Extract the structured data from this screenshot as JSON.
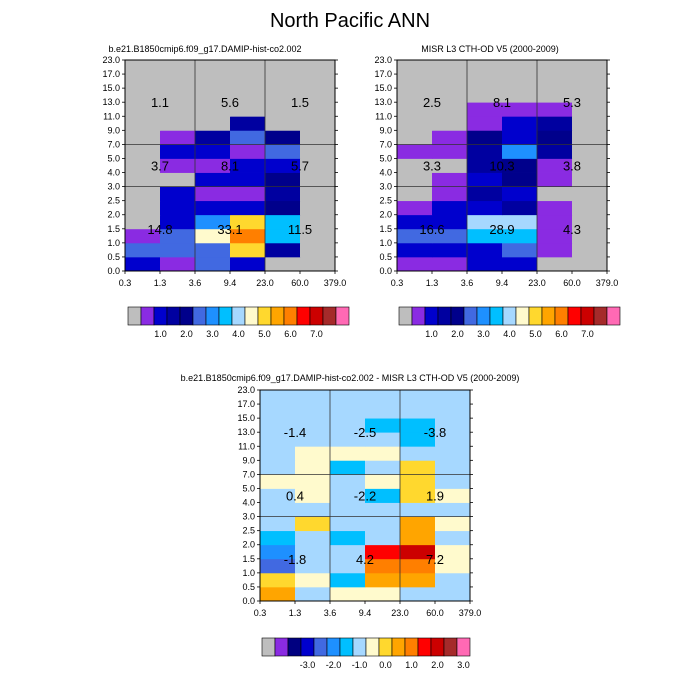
{
  "figure_title": "North Pacific ANN",
  "x_tick_labels": [
    "0.3",
    "1.3",
    "3.6",
    "9.4",
    "23.0",
    "60.0",
    "379.0"
  ],
  "y_tick_labels": [
    "0.0",
    "0.5",
    "1.0",
    "1.5",
    "2.0",
    "2.5",
    "3.0",
    "4.0",
    "5.0",
    "7.0",
    "9.0",
    "11.0",
    "13.0",
    "15.0",
    "17.0",
    "23.0"
  ],
  "colors": {
    "missing": "#bebebe",
    "main_scale": [
      "#8a2be2",
      "#0000cd",
      "#0000a0",
      "#00008b",
      "#4169e1",
      "#1e90ff",
      "#00bfff",
      "#a6d8ff",
      "#fffacd",
      "#ffd82e",
      "#ffa500",
      "#ff7f00",
      "#ff0000",
      "#cc0000",
      "#a52a2a",
      "#ff69b4"
    ],
    "diff_scale": [
      "#8a2be2",
      "#000080",
      "#0000cd",
      "#4169e1",
      "#1e90ff",
      "#00bfff",
      "#a6d8ff",
      "#fffacd",
      "#ffd82e",
      "#ffa500",
      "#ff7f00",
      "#ff0000",
      "#cc0000",
      "#a52a2a",
      "#ff69b4"
    ]
  },
  "chart_data": [
    {
      "type": "heatmap",
      "title": "b.e21.B1850cmip6.f09_g17.DAMIP-hist-co2.002",
      "x_edges": [
        0.3,
        1.3,
        3.6,
        9.4,
        23.0,
        60.0,
        379.0
      ],
      "y_edges": [
        0.0,
        0.5,
        1.0,
        1.5,
        2.0,
        2.5,
        3.0,
        4.0,
        5.0,
        7.0,
        9.0,
        11.0,
        13.0,
        15.0,
        17.0,
        23.0
      ],
      "levels": [
        1.0,
        2.0,
        3.0,
        4.0,
        5.0,
        6.0,
        7.0
      ],
      "colorbar_labels": [
        "1.0",
        "2.0",
        "3.0",
        "4.0",
        "5.0",
        "6.0",
        "7.0"
      ],
      "cell_colors": [
        [
          "#0000cd",
          "#8a2be2",
          "#4169e1",
          "#0000cd",
          "#bebebe",
          "#bebebe"
        ],
        [
          "#4169e1",
          "#4169e1",
          "#4169e1",
          "#ffd82e",
          "#0000a0",
          "#bebebe"
        ],
        [
          "#8a2be2",
          "#4169e1",
          "#fffacd",
          "#ff7f00",
          "#00bfff",
          "#bebebe"
        ],
        [
          "#bebebe",
          "#0000cd",
          "#1e90ff",
          "#ffd82e",
          "#00bfff",
          "#bebebe"
        ],
        [
          "#bebebe",
          "#0000cd",
          "#0000cd",
          "#0000cd",
          "#00008b",
          "#bebebe"
        ],
        [
          "#bebebe",
          "#0000cd",
          "#8a2be2",
          "#8a2be2",
          "#0000a0",
          "#bebebe"
        ],
        [
          "#bebebe",
          "#bebebe",
          "#0000cd",
          "#0000cd",
          "#00008b",
          "#bebebe"
        ],
        [
          "#bebebe",
          "#8a2be2",
          "#8a2be2",
          "#0000cd",
          "#0000cd",
          "#bebebe"
        ],
        [
          "#bebebe",
          "#0000cd",
          "#0000cd",
          "#8a2be2",
          "#4169e1",
          "#bebebe"
        ],
        [
          "#bebebe",
          "#8a2be2",
          "#0000a0",
          "#4169e1",
          "#00008b",
          "#bebebe"
        ],
        [
          "#bebebe",
          "#bebebe",
          "#bebebe",
          "#0000a0",
          "#bebebe",
          "#bebebe"
        ],
        [
          "#bebebe",
          "#bebebe",
          "#bebebe",
          "#bebebe",
          "#bebebe",
          "#bebebe"
        ],
        [
          "#bebebe",
          "#bebebe",
          "#bebebe",
          "#bebebe",
          "#bebebe",
          "#bebebe"
        ],
        [
          "#bebebe",
          "#bebebe",
          "#bebebe",
          "#bebebe",
          "#bebebe",
          "#bebebe"
        ],
        [
          "#bebebe",
          "#bebebe",
          "#bebebe",
          "#bebebe",
          "#bebebe",
          "#bebebe"
        ]
      ],
      "region_labels": [
        {
          "text": "1.1",
          "x": 0.8,
          "y": 13.6
        },
        {
          "text": "5.6",
          "x": 6.1,
          "y": 13.6
        },
        {
          "text": "1.5",
          "x": 41.0,
          "y": 13.6
        },
        {
          "text": "3.7",
          "x": 0.8,
          "y": 5.5
        },
        {
          "text": "8.1",
          "x": 6.1,
          "y": 5.5
        },
        {
          "text": "5.7",
          "x": 41.0,
          "y": 5.5
        },
        {
          "text": "14.8",
          "x": 0.8,
          "y": 1.5
        },
        {
          "text": "33.1",
          "x": 6.1,
          "y": 1.5
        },
        {
          "text": "11.5",
          "x": 41.0,
          "y": 1.5
        }
      ]
    },
    {
      "type": "heatmap",
      "title": "MISR L3 CTH-OD V5 (2000-2009)",
      "x_edges": [
        0.3,
        1.3,
        3.6,
        9.4,
        23.0,
        60.0,
        379.0
      ],
      "y_edges": [
        0.0,
        0.5,
        1.0,
        1.5,
        2.0,
        2.5,
        3.0,
        4.0,
        5.0,
        7.0,
        9.0,
        11.0,
        13.0,
        15.0,
        17.0,
        23.0
      ],
      "levels": [
        1.0,
        2.0,
        3.0,
        4.0,
        5.0,
        6.0,
        7.0
      ],
      "colorbar_labels": [
        "1.0",
        "2.0",
        "3.0",
        "4.0",
        "5.0",
        "6.0",
        "7.0"
      ],
      "cell_colors": [
        [
          "#8a2be2",
          "#8a2be2",
          "#0000cd",
          "#0000cd",
          "#bebebe",
          "#bebebe"
        ],
        [
          "#0000cd",
          "#0000cd",
          "#0000cd",
          "#4169e1",
          "#8a2be2",
          "#bebebe"
        ],
        [
          "#4169e1",
          "#4169e1",
          "#00bfff",
          "#00bfff",
          "#8a2be2",
          "#bebebe"
        ],
        [
          "#0000cd",
          "#0000cd",
          "#a6d8ff",
          "#a6d8ff",
          "#8a2be2",
          "#bebebe"
        ],
        [
          "#8a2be2",
          "#0000cd",
          "#0000cd",
          "#0000a0",
          "#8a2be2",
          "#bebebe"
        ],
        [
          "#bebebe",
          "#8a2be2",
          "#0000a0",
          "#0000cd",
          "#bebebe",
          "#bebebe"
        ],
        [
          "#bebebe",
          "#8a2be2",
          "#0000cd",
          "#00008b",
          "#8a2be2",
          "#bebebe"
        ],
        [
          "#bebebe",
          "#bebebe",
          "#0000a0",
          "#00008b",
          "#8a2be2",
          "#bebebe"
        ],
        [
          "#8a2be2",
          "#8a2be2",
          "#0000a0",
          "#1e90ff",
          "#0000a0",
          "#bebebe"
        ],
        [
          "#bebebe",
          "#8a2be2",
          "#00008b",
          "#0000cd",
          "#00008b",
          "#bebebe"
        ],
        [
          "#bebebe",
          "#bebebe",
          "#8a2be2",
          "#0000cd",
          "#0000a0",
          "#bebebe"
        ],
        [
          "#bebebe",
          "#bebebe",
          "#8a2be2",
          "#8a2be2",
          "#8a2be2",
          "#bebebe"
        ],
        [
          "#bebebe",
          "#bebebe",
          "#bebebe",
          "#bebebe",
          "#bebebe",
          "#bebebe"
        ],
        [
          "#bebebe",
          "#bebebe",
          "#bebebe",
          "#bebebe",
          "#bebebe",
          "#bebebe"
        ],
        [
          "#bebebe",
          "#bebebe",
          "#bebebe",
          "#bebebe",
          "#bebebe",
          "#bebebe"
        ]
      ],
      "region_labels": [
        {
          "text": "2.5",
          "x": 0.8,
          "y": 13.6
        },
        {
          "text": "8.1",
          "x": 6.1,
          "y": 13.6
        },
        {
          "text": "5.3",
          "x": 41.0,
          "y": 13.6
        },
        {
          "text": "3.3",
          "x": 0.8,
          "y": 5.5
        },
        {
          "text": "10.3",
          "x": 6.1,
          "y": 5.5
        },
        {
          "text": "3.8",
          "x": 41.0,
          "y": 5.5
        },
        {
          "text": "16.6",
          "x": 0.8,
          "y": 1.5
        },
        {
          "text": "28.9",
          "x": 6.1,
          "y": 1.5
        },
        {
          "text": "4.3",
          "x": 41.0,
          "y": 1.5
        }
      ]
    },
    {
      "type": "heatmap",
      "title": "b.e21.B1850cmip6.f09_g17.DAMIP-hist-co2.002 - MISR L3 CTH-OD V5 (2000-2009)",
      "x_edges": [
        0.3,
        1.3,
        3.6,
        9.4,
        23.0,
        60.0,
        379.0
      ],
      "y_edges": [
        0.0,
        0.5,
        1.0,
        1.5,
        2.0,
        2.5,
        3.0,
        4.0,
        5.0,
        7.0,
        9.0,
        11.0,
        13.0,
        15.0,
        17.0,
        23.0
      ],
      "levels": [
        -3.0,
        -2.0,
        -1.0,
        0.0,
        1.0,
        2.0,
        3.0
      ],
      "colorbar_labels": [
        "-3.0",
        "-2.0",
        "-1.0",
        "0.0",
        "1.0",
        "2.0",
        "3.0"
      ],
      "cell_colors": [
        [
          "#ffa500",
          "#a6d8ff",
          "#fffacd",
          "#fffacd",
          "#a6d8ff",
          "#a6d8ff"
        ],
        [
          "#ffd82e",
          "#fffacd",
          "#00bfff",
          "#ffa500",
          "#ffa500",
          "#a6d8ff"
        ],
        [
          "#4169e1",
          "#a6d8ff",
          "#a6d8ff",
          "#ff7f00",
          "#ff7f00",
          "#fffacd"
        ],
        [
          "#1e90ff",
          "#a6d8ff",
          "#a6d8ff",
          "#ff0000",
          "#cc0000",
          "#fffacd"
        ],
        [
          "#00bfff",
          "#a6d8ff",
          "#00bfff",
          "#a6d8ff",
          "#ffa500",
          "#a6d8ff"
        ],
        [
          "#a6d8ff",
          "#ffd82e",
          "#a6d8ff",
          "#a6d8ff",
          "#ffa500",
          "#fffacd"
        ],
        [
          "#a6d8ff",
          "#a6d8ff",
          "#a6d8ff",
          "#a6d8ff",
          "#a6d8ff",
          "#a6d8ff"
        ],
        [
          "#a6d8ff",
          "#fffacd",
          "#a6d8ff",
          "#00bfff",
          "#ffd82e",
          "#fffacd"
        ],
        [
          "#fffacd",
          "#fffacd",
          "#a6d8ff",
          "#fffacd",
          "#ffd82e",
          "#a6d8ff"
        ],
        [
          "#a6d8ff",
          "#fffacd",
          "#00bfff",
          "#a6d8ff",
          "#ffd82e",
          "#a6d8ff"
        ],
        [
          "#a6d8ff",
          "#fffacd",
          "#fffacd",
          "#fffacd",
          "#a6d8ff",
          "#a6d8ff"
        ],
        [
          "#a6d8ff",
          "#a6d8ff",
          "#a6d8ff",
          "#a6d8ff",
          "#00bfff",
          "#a6d8ff"
        ],
        [
          "#a6d8ff",
          "#a6d8ff",
          "#a6d8ff",
          "#00bfff",
          "#00bfff",
          "#a6d8ff"
        ],
        [
          "#a6d8ff",
          "#a6d8ff",
          "#a6d8ff",
          "#a6d8ff",
          "#a6d8ff",
          "#a6d8ff"
        ],
        [
          "#a6d8ff",
          "#a6d8ff",
          "#a6d8ff",
          "#a6d8ff",
          "#a6d8ff",
          "#a6d8ff"
        ]
      ],
      "region_labels": [
        {
          "text": "-1.4",
          "x": 0.8,
          "y": 13.6
        },
        {
          "text": "-2.5",
          "x": 6.1,
          "y": 13.6
        },
        {
          "text": "-3.8",
          "x": 41.0,
          "y": 13.6
        },
        {
          "text": "0.4",
          "x": 0.8,
          "y": 5.5
        },
        {
          "text": "-2.2",
          "x": 6.1,
          "y": 5.5
        },
        {
          "text": "1.9",
          "x": 41.0,
          "y": 5.5
        },
        {
          "text": "-1.8",
          "x": 0.8,
          "y": 1.5
        },
        {
          "text": "4.2",
          "x": 6.1,
          "y": 1.5
        },
        {
          "text": "7.2",
          "x": 41.0,
          "y": 1.5
        }
      ]
    }
  ]
}
